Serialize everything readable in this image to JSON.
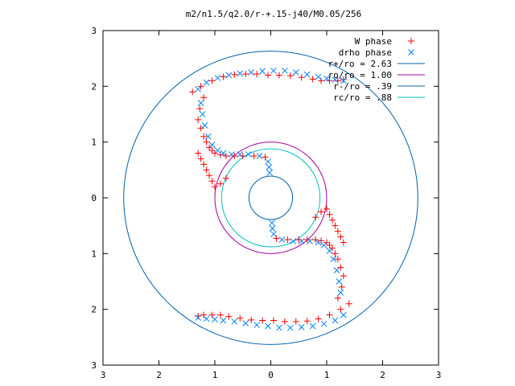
{
  "chart_data": {
    "type": "scatter",
    "title": "m2/n1.5/q2.0/r-+.15-j40/M0.05/256",
    "xlabel": "",
    "ylabel": "",
    "xlim": [
      -3,
      3
    ],
    "ylim": [
      -3,
      3
    ],
    "x_ticks": [
      -3,
      -2,
      -1,
      0,
      1,
      2,
      3
    ],
    "y_ticks": [
      -3,
      -2,
      -1,
      0,
      1,
      2,
      3
    ],
    "x_tick_labels": [
      "3",
      "2",
      "1",
      "0",
      "1",
      "2",
      "3"
    ],
    "y_tick_labels": [
      "3",
      "2",
      "1",
      "0",
      "1",
      "2",
      "3"
    ],
    "grid": false,
    "legend_position": "top-right",
    "series": [
      {
        "name": "W phase",
        "marker": "+",
        "color": "#ff0000",
        "x": [
          -1.4,
          -1.25,
          -1.05,
          -0.85,
          -0.65,
          -0.45,
          -0.25,
          -0.05,
          0.15,
          0.35,
          0.55,
          0.75,
          0.9,
          1.05,
          1.2,
          1.3,
          -1.2,
          -1.27,
          -1.3,
          -1.25,
          -1.2,
          -1.15,
          -1.1,
          -1.05,
          -1.0,
          -0.9,
          -0.8,
          -0.65,
          -0.5,
          -0.3,
          -0.1,
          -1.3,
          -1.25,
          -1.2,
          -1.15,
          -1.1,
          -1.05,
          -1.0,
          -0.9,
          -0.8,
          1.4,
          1.25,
          1.05,
          0.85,
          0.65,
          0.45,
          0.25,
          0.05,
          -0.15,
          -0.35,
          -0.55,
          -0.75,
          -0.9,
          -1.05,
          -1.2,
          -1.3,
          1.2,
          1.27,
          1.3,
          1.25,
          1.2,
          1.15,
          1.1,
          1.05,
          1.0,
          0.9,
          0.8,
          0.65,
          0.5,
          0.3,
          0.1,
          1.3,
          1.25,
          1.2,
          1.15,
          1.1,
          1.05,
          1.0,
          0.9,
          0.8
        ],
        "y": [
          1.9,
          2.0,
          2.1,
          2.17,
          2.21,
          2.22,
          2.22,
          2.2,
          2.2,
          2.19,
          2.16,
          2.13,
          2.1,
          2.1,
          2.1,
          2.12,
          1.8,
          1.6,
          1.4,
          1.25,
          1.1,
          1.0,
          0.9,
          0.85,
          0.8,
          0.77,
          0.75,
          0.75,
          0.75,
          0.75,
          0.73,
          0.8,
          0.7,
          0.6,
          0.5,
          0.4,
          0.3,
          0.2,
          0.25,
          0.35,
          -1.9,
          -2.0,
          -2.1,
          -2.17,
          -2.21,
          -2.22,
          -2.22,
          -2.2,
          -2.2,
          -2.19,
          -2.16,
          -2.13,
          -2.1,
          -2.1,
          -2.1,
          -2.12,
          -1.8,
          -1.6,
          -1.4,
          -1.25,
          -1.1,
          -1.0,
          -0.9,
          -0.85,
          -0.8,
          -0.77,
          -0.75,
          -0.75,
          -0.75,
          -0.75,
          -0.73,
          -0.8,
          -0.7,
          -0.6,
          -0.5,
          -0.4,
          -0.3,
          -0.2,
          -0.25,
          -0.35
        ]
      },
      {
        "name": "drho phase",
        "marker": "x",
        "color": "#0080ff",
        "x": [
          -1.3,
          -1.15,
          -0.95,
          -0.75,
          -0.55,
          -0.35,
          -0.15,
          0.05,
          0.25,
          0.45,
          0.65,
          0.85,
          1.0,
          1.15,
          1.3,
          -1.25,
          -1.22,
          -1.18,
          -1.12,
          -1.05,
          -0.95,
          -0.85,
          -0.7,
          -0.55,
          -0.4,
          -0.2,
          -0.05,
          -0.03,
          -0.02,
          1.3,
          1.15,
          0.95,
          0.75,
          0.55,
          0.35,
          0.15,
          -0.05,
          -0.25,
          -0.45,
          -0.65,
          -0.85,
          -1.0,
          -1.15,
          -1.3,
          1.25,
          1.22,
          1.18,
          1.12,
          1.05,
          0.95,
          0.85,
          0.7,
          0.55,
          0.4,
          0.2,
          0.05,
          0.03,
          0.02
        ],
        "y": [
          1.95,
          2.07,
          2.15,
          2.2,
          2.23,
          2.25,
          2.27,
          2.28,
          2.28,
          2.25,
          2.21,
          2.17,
          2.14,
          2.12,
          2.1,
          1.7,
          1.5,
          1.3,
          1.1,
          0.95,
          0.85,
          0.8,
          0.78,
          0.78,
          0.78,
          0.75,
          0.65,
          0.55,
          0.45,
          -2.1,
          -2.2,
          -2.26,
          -2.3,
          -2.32,
          -2.33,
          -2.33,
          -2.3,
          -2.28,
          -2.25,
          -2.22,
          -2.2,
          -2.18,
          -2.17,
          -2.15,
          -1.7,
          -1.5,
          -1.3,
          -1.1,
          -0.95,
          -0.85,
          -0.8,
          -0.78,
          -0.78,
          -0.78,
          -0.75,
          -0.65,
          -0.55,
          -0.45
        ]
      }
    ],
    "circles": [
      {
        "name": "r+/ro = 2.63",
        "radius": 2.63,
        "color": "#0060ad"
      },
      {
        "name": "ro/ro = 1.00",
        "radius": 1.0,
        "color": "#a000a0"
      },
      {
        "name": "r-/ro = .39",
        "radius": 0.39,
        "color": "#0060ad"
      },
      {
        "name": "rc/ro = .88",
        "radius": 0.88,
        "color": "#00c0c0"
      }
    ]
  }
}
